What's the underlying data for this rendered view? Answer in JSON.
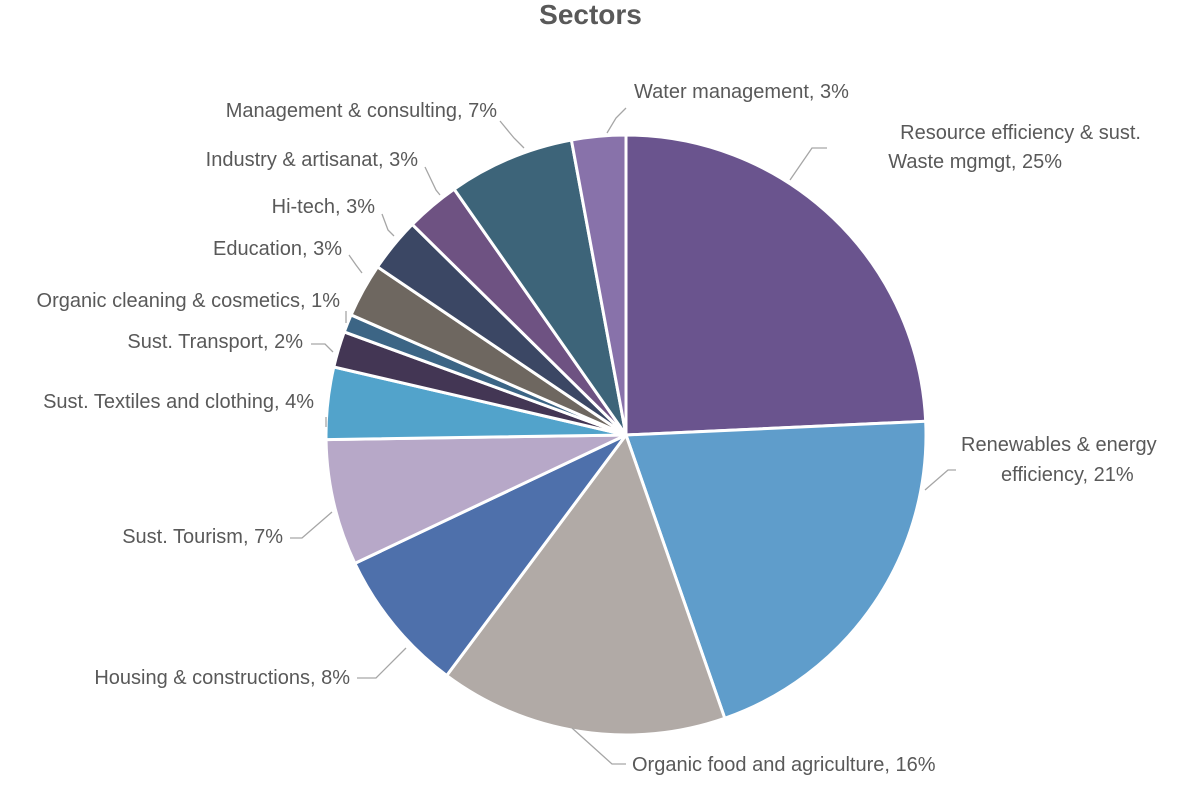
{
  "chart_data": {
    "type": "pie",
    "title": "Sectors",
    "start": "12 o'clock",
    "direction": "clockwise",
    "slices": [
      {
        "label": "Resource efficiency & sust. Waste mgmgt, 25%",
        "name": "Resource efficiency & sust. Waste mgmgt",
        "value": 25,
        "color": "#6a548e"
      },
      {
        "label": "Renewables & energy efficiency, 21%",
        "name": "Renewables & energy efficiency",
        "value": 21,
        "color": "#5f9dcb"
      },
      {
        "label": "Organic food and agriculture, 16%",
        "name": "Organic food and agriculture",
        "value": 16,
        "color": "#b1aaa6"
      },
      {
        "label": "Housing & constructions, 8%",
        "name": "Housing & constructions",
        "value": 8,
        "color": "#4e70ab"
      },
      {
        "label": "Sust. Tourism, 7%",
        "name": "Sust. Tourism",
        "value": 7,
        "color": "#b7a8c8"
      },
      {
        "label": "Sust. Textiles and clothing, 4%",
        "name": "Sust. Textiles and clothing",
        "value": 4,
        "color": "#52a3cb"
      },
      {
        "label": "Sust. Transport, 2%",
        "name": "Sust. Transport",
        "value": 2,
        "color": "#433654"
      },
      {
        "label": "Organic cleaning & cosmetics, 1%",
        "name": "Organic cleaning & cosmetics",
        "value": 1,
        "color": "#3c6585"
      },
      {
        "label": "Education, 3%",
        "name": "Education",
        "value": 3,
        "color": "#6e6760"
      },
      {
        "label": "Hi-tech, 3%",
        "name": "Hi-tech",
        "value": 3,
        "color": "#3b4764"
      },
      {
        "label": "Industry & artisanat, 3%",
        "name": "Industry & artisanat",
        "value": 3,
        "color": "#6e5282"
      },
      {
        "label": "Management & consulting, 7%",
        "name": "Management & consulting",
        "value": 7,
        "color": "#3d6479"
      },
      {
        "label": "Water management, 3%",
        "name": "Water management",
        "value": 3,
        "color": "#8872aa"
      }
    ]
  }
}
